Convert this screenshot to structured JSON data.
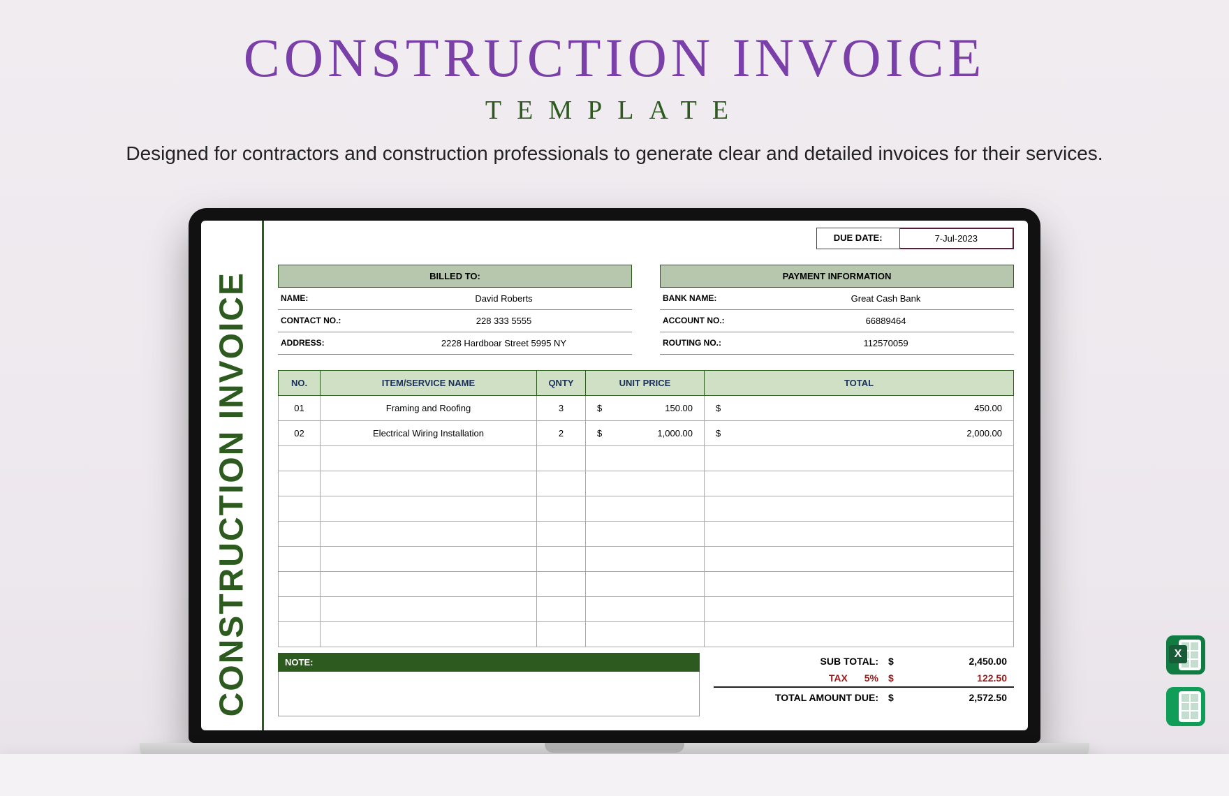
{
  "hero": {
    "title": "CONSTRUCTION INVOICE",
    "subtitle": "TEMPLATE",
    "description": "Designed for contractors and construction professionals to generate clear and detailed invoices for their services."
  },
  "colors": {
    "title": "#7a3fa8",
    "accent_green": "#2d5a1e",
    "header_fill": "#b7c7ad",
    "table_head_fill": "#cfe0c5",
    "tax_red": "#9a1a1a",
    "due_border": "#5a1e3a",
    "background": "#f0ecf0"
  },
  "invoice": {
    "sidebar_text": "CONSTRUCTION INVOICE",
    "due_date_label": "DUE DATE:",
    "due_date_value": "7-Jul-2023",
    "billed_to": {
      "header": "BILLED TO:",
      "rows": [
        {
          "k": "NAME:",
          "v": "David Roberts"
        },
        {
          "k": "CONTACT NO.:",
          "v": "228 333 5555"
        },
        {
          "k": "ADDRESS:",
          "v": "2228 Hardboar Street 5995 NY"
        }
      ]
    },
    "payment": {
      "header": "PAYMENT INFORMATION",
      "rows": [
        {
          "k": "BANK NAME:",
          "v": "Great Cash Bank"
        },
        {
          "k": "ACCOUNT NO.:",
          "v": "66889464"
        },
        {
          "k": "ROUTING NO.:",
          "v": "112570059"
        }
      ]
    },
    "table": {
      "headers": {
        "no": "NO.",
        "name": "ITEM/SERVICE NAME",
        "qty": "QNTY",
        "unit": "UNIT PRICE",
        "total": "TOTAL"
      },
      "rows": [
        {
          "no": "01",
          "name": "Framing and Roofing",
          "qty": "3",
          "unit": "150.00",
          "total": "450.00"
        },
        {
          "no": "02",
          "name": "Electrical Wiring Installation",
          "qty": "2",
          "unit": "1,000.00",
          "total": "2,000.00"
        }
      ],
      "blank_rows": 8,
      "currency": "$"
    },
    "note_label": "NOTE:",
    "totals": {
      "subtotal_label": "SUB TOTAL:",
      "subtotal": "2,450.00",
      "tax_label": "TAX",
      "tax_pct": "5%",
      "tax": "122.50",
      "grand_label": "TOTAL AMOUNT DUE:",
      "grand": "2,572.50",
      "currency": "$"
    }
  },
  "side_icons": {
    "excel": "X",
    "excel_name": "excel-icon",
    "sheets_name": "google-sheets-icon"
  }
}
